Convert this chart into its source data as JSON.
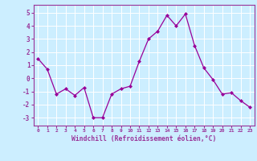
{
  "x": [
    0,
    1,
    2,
    3,
    4,
    5,
    6,
    7,
    8,
    9,
    10,
    11,
    12,
    13,
    14,
    15,
    16,
    17,
    18,
    19,
    20,
    21,
    22,
    23
  ],
  "y": [
    1.5,
    0.7,
    -1.2,
    -0.8,
    -1.3,
    -0.7,
    -3.0,
    -3.0,
    -1.2,
    -0.8,
    -0.6,
    1.3,
    3.0,
    3.6,
    4.8,
    4.0,
    4.9,
    2.5,
    0.8,
    -0.1,
    -1.2,
    -1.1,
    -1.7,
    -2.2
  ],
  "line_color": "#990099",
  "marker": "D",
  "marker_size": 2,
  "bg_color": "#cceeff",
  "grid_color": "#ffffff",
  "xlabel": "Windchill (Refroidissement éolien,°C)",
  "xlabel_color": "#993399",
  "xlabel_bg": "#cceeff",
  "yticks": [
    -3,
    -2,
    -1,
    0,
    1,
    2,
    3,
    4,
    5
  ],
  "xlim": [
    -0.5,
    23.5
  ],
  "ylim": [
    -3.6,
    5.6
  ],
  "xtick_labels": [
    "0",
    "1",
    "2",
    "3",
    "4",
    "5",
    "6",
    "7",
    "8",
    "9",
    "10",
    "11",
    "12",
    "13",
    "14",
    "15",
    "16",
    "17",
    "18",
    "19",
    "20",
    "21",
    "22",
    "23"
  ],
  "tick_color": "#993399",
  "axis_color": "#993399",
  "spine_color": "#993399"
}
